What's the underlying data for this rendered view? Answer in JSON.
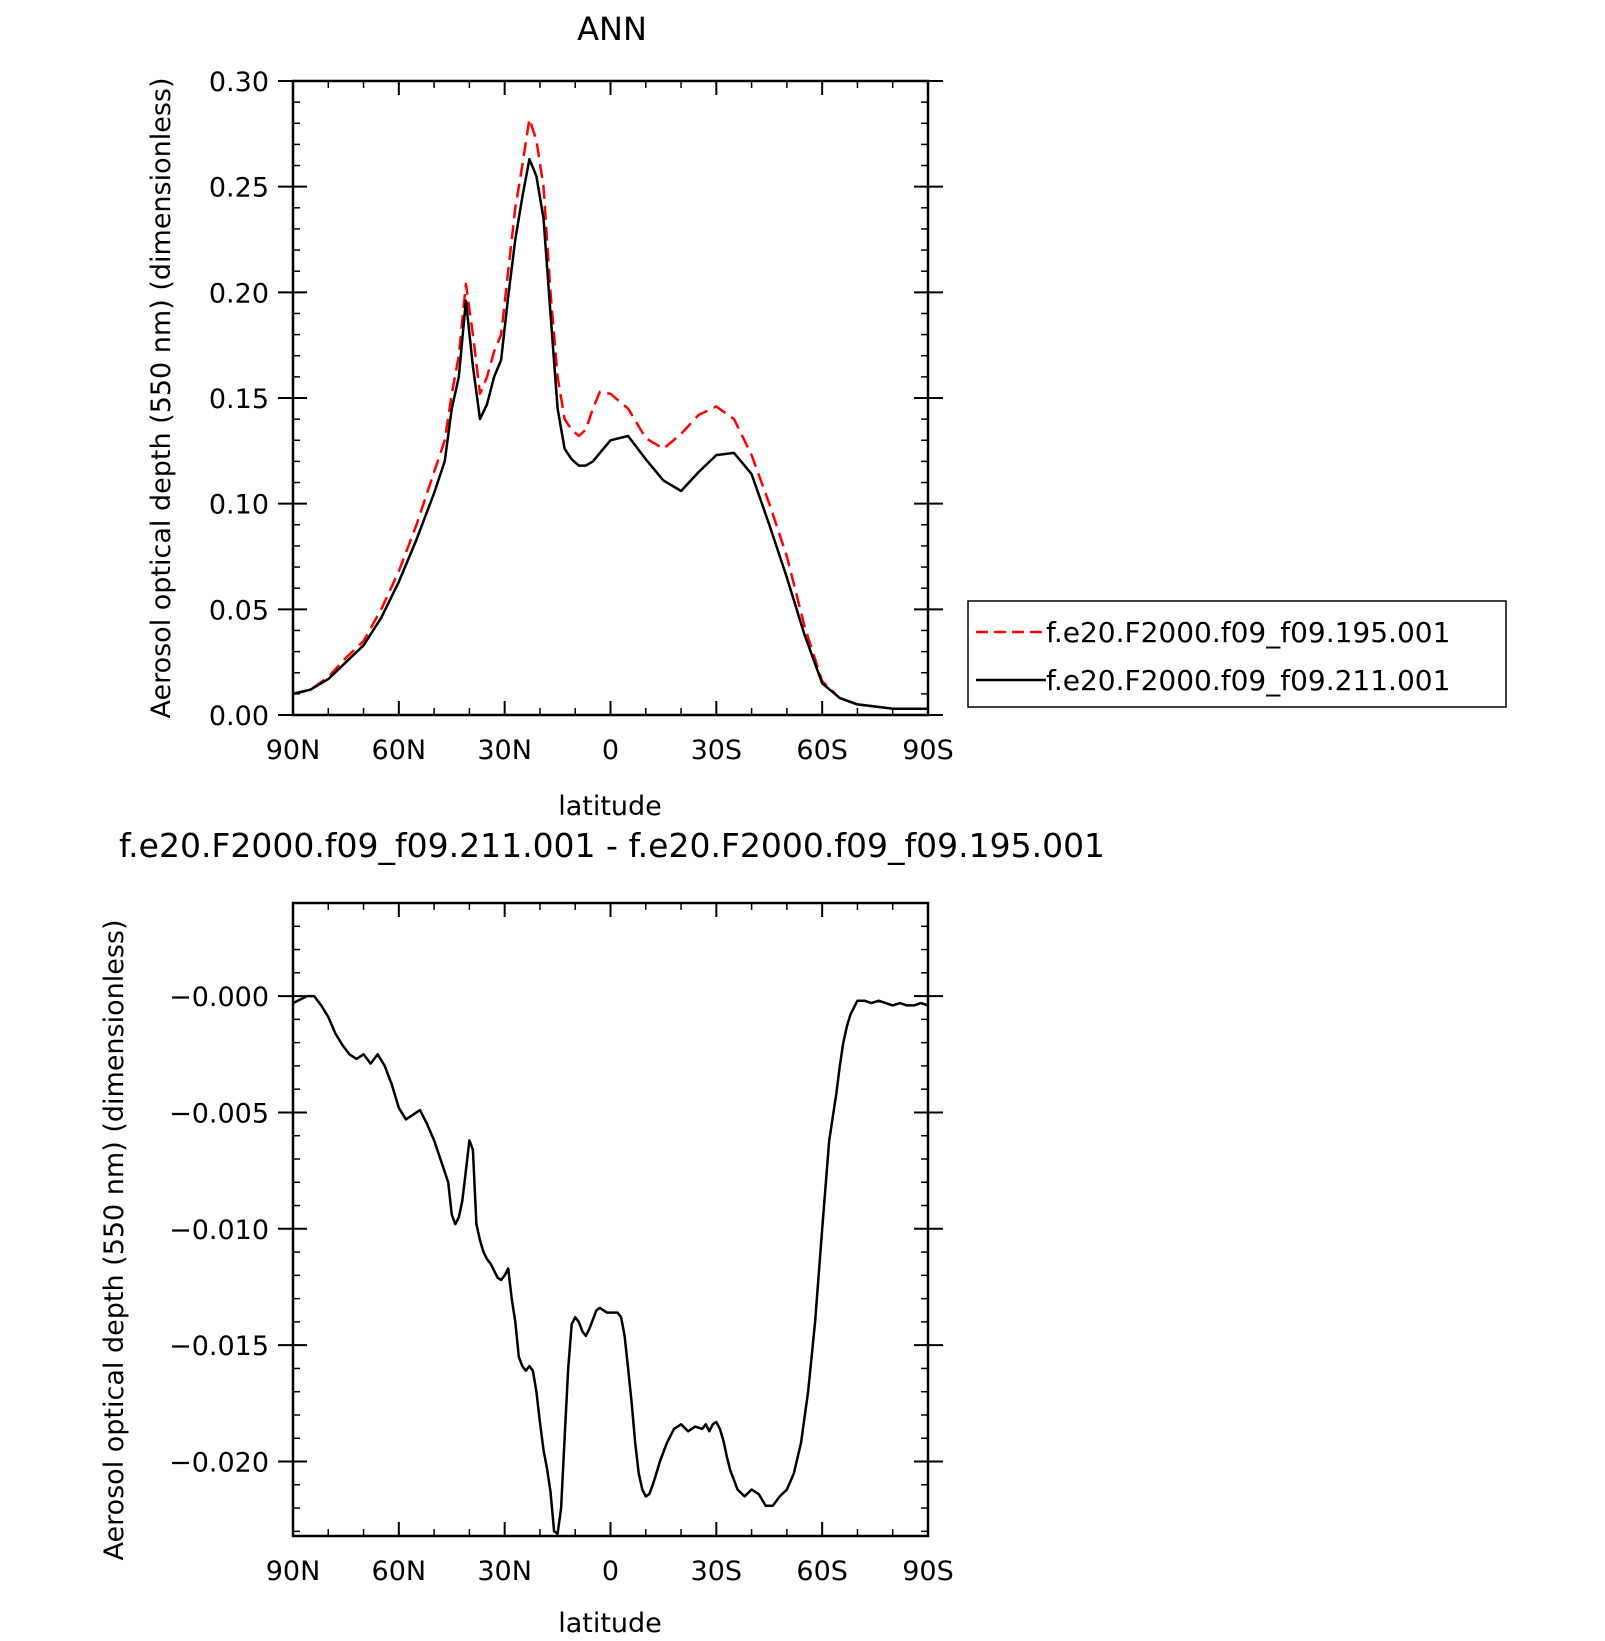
{
  "chart_data": [
    {
      "type": "line",
      "title": "ANN",
      "xlabel": "latitude",
      "ylabel": "Aerosol optical depth (550 nm) (dimensionless)",
      "xlim": [
        90,
        -90
      ],
      "ylim": [
        0.0,
        0.3
      ],
      "x_ticks": [
        {
          "value": 90,
          "label": "90N"
        },
        {
          "value": 60,
          "label": "60N"
        },
        {
          "value": 30,
          "label": "30N"
        },
        {
          "value": 0,
          "label": "0"
        },
        {
          "value": -30,
          "label": "30S"
        },
        {
          "value": -60,
          "label": "60S"
        },
        {
          "value": -90,
          "label": "90S"
        }
      ],
      "y_ticks": [
        {
          "value": 0.0,
          "label": "0.00"
        },
        {
          "value": 0.05,
          "label": "0.05"
        },
        {
          "value": 0.1,
          "label": "0.10"
        },
        {
          "value": 0.15,
          "label": "0.15"
        },
        {
          "value": 0.2,
          "label": "0.20"
        },
        {
          "value": 0.25,
          "label": "0.25"
        },
        {
          "value": 0.3,
          "label": "0.30"
        }
      ],
      "legend_position": "right",
      "series": [
        {
          "name": "f.e20.F2000.f09_f09.195.001",
          "color": "#ff0000",
          "dash": "dashed",
          "x": [
            90,
            85,
            80,
            75,
            70,
            65,
            60,
            55,
            50,
            47,
            45,
            43,
            41,
            39,
            37,
            35,
            33,
            31,
            29,
            27,
            25,
            23,
            21,
            19,
            17,
            15,
            13,
            11,
            9,
            7,
            5,
            3,
            0,
            -5,
            -10,
            -15,
            -20,
            -25,
            -30,
            -35,
            -40,
            -45,
            -50,
            -55,
            -60,
            -65,
            -70,
            -75,
            -80,
            -85,
            -90
          ],
          "y": [
            0.01,
            0.012,
            0.018,
            0.027,
            0.035,
            0.05,
            0.068,
            0.09,
            0.115,
            0.13,
            0.152,
            0.17,
            0.204,
            0.18,
            0.152,
            0.16,
            0.172,
            0.18,
            0.21,
            0.24,
            0.26,
            0.282,
            0.272,
            0.25,
            0.2,
            0.16,
            0.14,
            0.135,
            0.132,
            0.135,
            0.145,
            0.153,
            0.152,
            0.145,
            0.131,
            0.126,
            0.133,
            0.142,
            0.146,
            0.14,
            0.123,
            0.1,
            0.075,
            0.042,
            0.016,
            0.008,
            0.005,
            0.004,
            0.003,
            0.003,
            0.003
          ]
        },
        {
          "name": "f.e20.F2000.f09_f09.211.001",
          "color": "#000000",
          "dash": "solid",
          "x": [
            90,
            85,
            80,
            75,
            70,
            65,
            60,
            55,
            50,
            47,
            45,
            43,
            41,
            39,
            37,
            35,
            33,
            31,
            29,
            27,
            25,
            23,
            21,
            19,
            17,
            15,
            13,
            11,
            9,
            7,
            5,
            3,
            0,
            -5,
            -10,
            -15,
            -20,
            -25,
            -30,
            -35,
            -40,
            -45,
            -50,
            -55,
            -60,
            -65,
            -70,
            -75,
            -80,
            -85,
            -90
          ],
          "y": [
            0.01,
            0.012,
            0.017,
            0.025,
            0.033,
            0.046,
            0.063,
            0.083,
            0.105,
            0.12,
            0.145,
            0.16,
            0.196,
            0.165,
            0.14,
            0.147,
            0.16,
            0.168,
            0.198,
            0.225,
            0.245,
            0.263,
            0.255,
            0.235,
            0.19,
            0.145,
            0.126,
            0.121,
            0.118,
            0.118,
            0.12,
            0.124,
            0.13,
            0.132,
            0.121,
            0.111,
            0.106,
            0.115,
            0.123,
            0.124,
            0.114,
            0.09,
            0.065,
            0.038,
            0.015,
            0.008,
            0.005,
            0.004,
            0.003,
            0.003,
            0.003
          ]
        }
      ]
    },
    {
      "type": "line",
      "title": "f.e20.F2000.f09_f09.211.001 - f.e20.F2000.f09_f09.195.001",
      "xlabel": "latitude",
      "ylabel": "Aerosol optical depth (550 nm) (dimensionless)",
      "xlim": [
        90,
        -90
      ],
      "ylim": [
        -0.0232,
        0.004
      ],
      "x_ticks": [
        {
          "value": 90,
          "label": "90N"
        },
        {
          "value": 60,
          "label": "60N"
        },
        {
          "value": 30,
          "label": "30N"
        },
        {
          "value": 0,
          "label": "0"
        },
        {
          "value": -30,
          "label": "30S"
        },
        {
          "value": -60,
          "label": "60S"
        },
        {
          "value": -90,
          "label": "90S"
        }
      ],
      "y_ticks": [
        {
          "value": 0.0,
          "label": "−0.000"
        },
        {
          "value": -0.005,
          "label": "−0.005"
        },
        {
          "value": -0.01,
          "label": "−0.010"
        },
        {
          "value": -0.015,
          "label": "−0.015"
        },
        {
          "value": -0.02,
          "label": "−0.020"
        }
      ],
      "series": [
        {
          "color": "#000000",
          "dash": "solid",
          "x": [
            90,
            86,
            84,
            82,
            80,
            78,
            76,
            74,
            72,
            70,
            68,
            66,
            64,
            62,
            60,
            58,
            56,
            54,
            52,
            50,
            48,
            46,
            45,
            44,
            43,
            42,
            41,
            40,
            39,
            38,
            37,
            36,
            35,
            34,
            33,
            32,
            31,
            30,
            29,
            28,
            27,
            26,
            25,
            24,
            23,
            22,
            21,
            20,
            19,
            18,
            17,
            16,
            15,
            14,
            13,
            12,
            11,
            10,
            9,
            8,
            7,
            6,
            5,
            4,
            3,
            2,
            1,
            0,
            -1,
            -2,
            -3,
            -4,
            -5,
            -6,
            -7,
            -8,
            -9,
            -10,
            -11,
            -12,
            -13,
            -14,
            -15,
            -16,
            -18,
            -20,
            -22,
            -24,
            -26,
            -27,
            -28,
            -29,
            -30,
            -31,
            -32,
            -33,
            -34,
            -35,
            -36,
            -38,
            -40,
            -42,
            -44,
            -46,
            -48,
            -50,
            -52,
            -54,
            -56,
            -58,
            -60,
            -62,
            -64,
            -65,
            -66,
            -67,
            -68,
            -70,
            -72,
            -74,
            -76,
            -78,
            -80,
            -82,
            -84,
            -86,
            -88,
            -90
          ],
          "y": [
            -0.0003,
            0.0,
            0.0,
            -0.0004,
            -0.0009,
            -0.0016,
            -0.0021,
            -0.0025,
            -0.0027,
            -0.0025,
            -0.0029,
            -0.0025,
            -0.003,
            -0.0038,
            -0.0048,
            -0.0053,
            -0.0051,
            -0.0049,
            -0.0055,
            -0.0062,
            -0.0071,
            -0.008,
            -0.0094,
            -0.0098,
            -0.0095,
            -0.0088,
            -0.0075,
            -0.0062,
            -0.0066,
            -0.0098,
            -0.0105,
            -0.011,
            -0.0113,
            -0.0115,
            -0.0118,
            -0.0121,
            -0.0122,
            -0.012,
            -0.0117,
            -0.013,
            -0.014,
            -0.0155,
            -0.0159,
            -0.0161,
            -0.0159,
            -0.0161,
            -0.017,
            -0.0183,
            -0.0195,
            -0.0203,
            -0.0213,
            -0.023,
            -0.0231,
            -0.022,
            -0.019,
            -0.016,
            -0.0141,
            -0.0138,
            -0.014,
            -0.0144,
            -0.0146,
            -0.0143,
            -0.0139,
            -0.0135,
            -0.0134,
            -0.0135,
            -0.0136,
            -0.0136,
            -0.0136,
            -0.0136,
            -0.0138,
            -0.0146,
            -0.016,
            -0.0175,
            -0.0192,
            -0.0205,
            -0.0212,
            -0.0215,
            -0.0214,
            -0.021,
            -0.0205,
            -0.02,
            -0.0196,
            -0.0192,
            -0.0186,
            -0.0184,
            -0.0187,
            -0.0185,
            -0.0186,
            -0.0184,
            -0.0187,
            -0.0184,
            -0.0183,
            -0.0186,
            -0.0191,
            -0.0198,
            -0.0204,
            -0.0208,
            -0.0212,
            -0.0215,
            -0.0212,
            -0.0214,
            -0.0219,
            -0.0219,
            -0.0215,
            -0.0212,
            -0.0205,
            -0.0192,
            -0.017,
            -0.014,
            -0.01,
            -0.0062,
            -0.0042,
            -0.003,
            -0.002,
            -0.0013,
            -0.0008,
            -0.0002,
            -0.0002,
            -0.0003,
            -0.0002,
            -0.0003,
            -0.0004,
            -0.0003,
            -0.0004,
            -0.0004,
            -0.0003,
            -0.0004
          ]
        }
      ]
    }
  ]
}
